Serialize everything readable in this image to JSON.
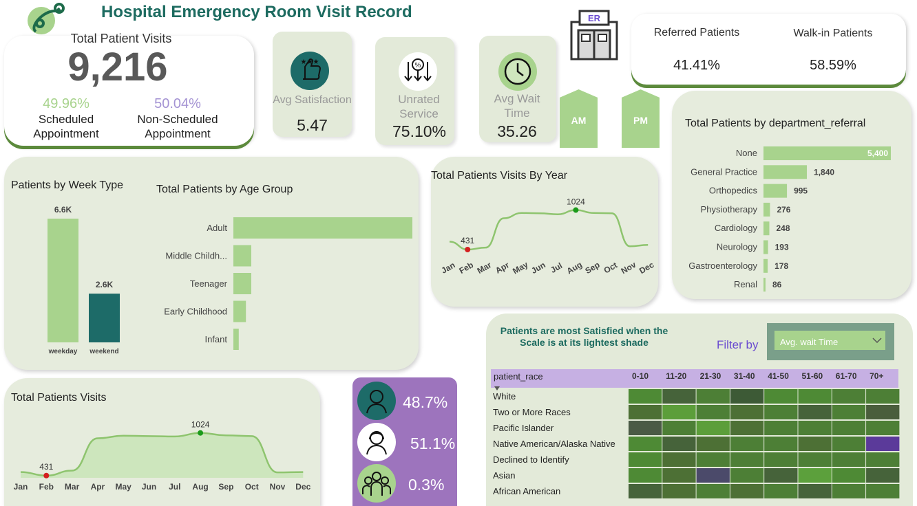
{
  "title": "Hospital Emergency Room Visit Record",
  "total": {
    "label": "Total Patient Visits",
    "value": "9,216",
    "scheduled_pct": "49.96%",
    "scheduled_label1": "Scheduled",
    "scheduled_label2": "Appointment",
    "nonscheduled_pct": "50.04%",
    "nonscheduled_label1": "Non-Scheduled",
    "nonscheduled_label2": "Appointment"
  },
  "kpis": {
    "satisfaction": {
      "label": "Avg Satisfaction",
      "value": "5.47",
      "icon": "thumbs-up-stars-icon"
    },
    "unrated": {
      "label1": "Unrated",
      "label2": "Service",
      "value": "75.10%",
      "icon": "percent-arrows-icon"
    },
    "wait": {
      "label1": "Avg Wait",
      "label2": "Time",
      "value": "35.26",
      "icon": "clock-icon"
    }
  },
  "buttons": {
    "am": "AM",
    "pm": "PM"
  },
  "er_sign": "ER",
  "referral": {
    "referred_label": "Referred Patients",
    "referred_value": "41.41%",
    "walkin_label": "Walk-in Patients",
    "walkin_value": "58.59%"
  },
  "department": {
    "title": "Total Patients by department_referral",
    "items": [
      {
        "name": "None",
        "value": 5400,
        "label": "5,400"
      },
      {
        "name": "General Practice",
        "value": 1840,
        "label": "1,840"
      },
      {
        "name": "Orthopedics",
        "value": 995,
        "label": "995"
      },
      {
        "name": "Physiotherapy",
        "value": 276,
        "label": "276"
      },
      {
        "name": "Cardiology",
        "value": 248,
        "label": "248"
      },
      {
        "name": "Neurology",
        "value": 193,
        "label": "193"
      },
      {
        "name": "Gastroenterology",
        "value": 178,
        "label": "178"
      },
      {
        "name": "Renal",
        "value": 86,
        "label": "86"
      }
    ]
  },
  "weektype": {
    "title": "Patients by Week Type",
    "items": [
      {
        "name": "weekday",
        "value": 6.6,
        "label": "6.6K",
        "color": "#a8d38d"
      },
      {
        "name": "weekend",
        "value": 2.6,
        "label": "2.6K",
        "color": "#1d6b68"
      }
    ]
  },
  "agegroup": {
    "title": "Total Patients by Age Group",
    "items": [
      {
        "name": "Adult",
        "value": 100
      },
      {
        "name": "Middle Childh...",
        "value": 10
      },
      {
        "name": "Teenager",
        "value": 10
      },
      {
        "name": "Early Childhood",
        "value": 7
      },
      {
        "name": "Infant",
        "value": 3
      }
    ]
  },
  "by_year": {
    "title": "Total Patients Visits By Year",
    "months": [
      "Jan",
      "Feb",
      "Mar",
      "Apr",
      "May",
      "Jun",
      "Jul",
      "Aug",
      "Sep",
      "Oct",
      "Nov",
      "Dec"
    ],
    "values": [
      550,
      431,
      460,
      900,
      980,
      975,
      960,
      1024,
      980,
      975,
      480,
      500
    ],
    "max_label": "1024",
    "min_label": "431"
  },
  "visits": {
    "title": "Total Patients Visits",
    "months": [
      "Jan",
      "Feb",
      "Mar",
      "Apr",
      "May",
      "Jun",
      "Jul",
      "Aug",
      "Sep",
      "Oct",
      "Nov",
      "Dec"
    ],
    "values": [
      480,
      431,
      500,
      950,
      985,
      980,
      975,
      1024,
      990,
      980,
      475,
      480
    ],
    "max_label": "1024",
    "min_label": "431"
  },
  "gender": [
    {
      "pct": "48.7%",
      "icon": "male-avatar-icon",
      "color": "#1d6b68"
    },
    {
      "pct": "51.1%",
      "icon": "female-avatar-icon",
      "color": "#ffffff"
    },
    {
      "pct": "0.3%",
      "icon": "group-icon",
      "color": "#a8d38d"
    }
  ],
  "heatmap": {
    "note": "Patients are most Satisfied when the Scale is at its lightest shade",
    "filter_label": "Filter by",
    "filter_value": "Avg. wait Time",
    "row_header": "patient_race",
    "cols": [
      "0-10",
      "11-20",
      "21-30",
      "31-40",
      "41-50",
      "51-60",
      "61-70",
      "70+"
    ],
    "rows": [
      {
        "name": "White",
        "cells": [
          "#4e8a35",
          "#46633a",
          "#4d7f36",
          "#3d5a36",
          "#4e8a35",
          "#4e8a35",
          "#4d7f36",
          "#4d7f36"
        ]
      },
      {
        "name": "Two or More Races",
        "cells": [
          "#4d7035",
          "#5c9e3a",
          "#4d7f36",
          "#4d7035",
          "#4d7f36",
          "#46633a",
          "#4d7f36",
          "#4a5e3c"
        ]
      },
      {
        "name": "Pacific Islander",
        "cells": [
          "#4a5a45",
          "#4d7f36",
          "#5c9e3a",
          "#4d7035",
          "#4d7f36",
          "#4d7f36",
          "#4d7f36",
          "#4d7f36"
        ]
      },
      {
        "name": "Native American/Alaska Native",
        "cells": [
          "#4e8a35",
          "#46633a",
          "#4d7035",
          "#4d7f36",
          "#4d7f36",
          "#4d7035",
          "#4d7f36",
          "#5b3a9a"
        ]
      },
      {
        "name": "Declined to Identify",
        "cells": [
          "#4e8a35",
          "#4d7035",
          "#4d7f36",
          "#4d7f36",
          "#4d7f36",
          "#4d7f36",
          "#4d7f36",
          "#4d7f36"
        ]
      },
      {
        "name": "Asian",
        "cells": [
          "#4e8a35",
          "#4d7035",
          "#4b4a6a",
          "#4d7f36",
          "#46633a",
          "#5ca03c",
          "#4e8a35",
          "#46633a"
        ]
      },
      {
        "name": "African American",
        "cells": [
          "#46633a",
          "#4d7035",
          "#4d7f36",
          "#4d7035",
          "#4d7f36",
          "#46633a",
          "#4d7f36",
          "#4d7f36"
        ]
      }
    ]
  }
}
